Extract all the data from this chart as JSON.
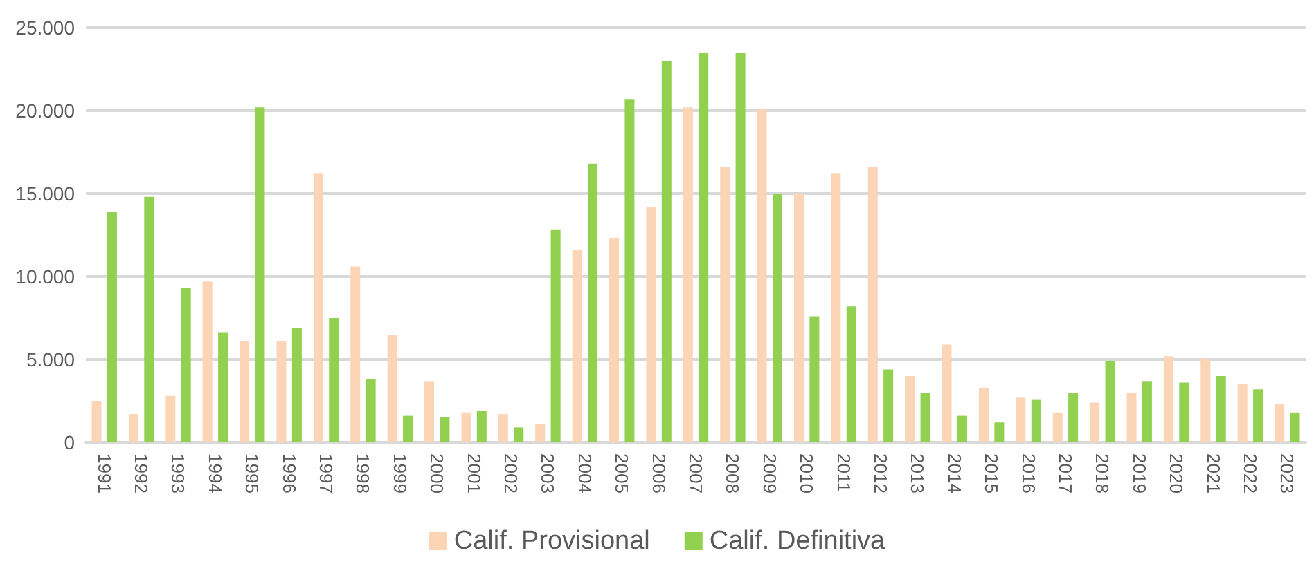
{
  "chart_data": {
    "type": "bar",
    "categories": [
      "1991",
      "1992",
      "1993",
      "1994",
      "1995",
      "1996",
      "1997",
      "1998",
      "1999",
      "2000",
      "2001",
      "2002",
      "2003",
      "2004",
      "2005",
      "2006",
      "2007",
      "2008",
      "2009",
      "2010",
      "2011",
      "2012",
      "2013",
      "2014",
      "2015",
      "2016",
      "2017",
      "2018",
      "2019",
      "2020",
      "2021",
      "2022",
      "2023"
    ],
    "series": [
      {
        "name": "Calif. Provisional",
        "color": "#fbd5b5",
        "values": [
          2500,
          1700,
          2800,
          9700,
          6100,
          6100,
          16200,
          10600,
          6500,
          3700,
          1800,
          1700,
          1100,
          11600,
          12300,
          14200,
          20200,
          16600,
          20100,
          15000,
          16200,
          16600,
          4000,
          5900,
          3300,
          2700,
          1800,
          2400,
          3000,
          5200,
          5000,
          3500,
          2300
        ]
      },
      {
        "name": "Calif. Definitiva",
        "color": "#92d050",
        "values": [
          13900,
          14800,
          9300,
          6600,
          20200,
          6900,
          7500,
          3800,
          1600,
          1500,
          1900,
          900,
          12800,
          16800,
          20700,
          23000,
          23500,
          23500,
          15000,
          7600,
          8200,
          4400,
          3000,
          1600,
          1200,
          2600,
          3000,
          4900,
          3700,
          3600,
          4000,
          3200,
          1800
        ]
      }
    ],
    "ylim": [
      0,
      25000
    ],
    "yticks": [
      {
        "value": 0,
        "label": "0"
      },
      {
        "value": 5000,
        "label": "5.000"
      },
      {
        "value": 10000,
        "label": "10.000"
      },
      {
        "value": 15000,
        "label": "15.000"
      },
      {
        "value": 20000,
        "label": "20.000"
      },
      {
        "value": 25000,
        "label": "25.000"
      }
    ],
    "grid": "y",
    "legend": "bottom"
  }
}
